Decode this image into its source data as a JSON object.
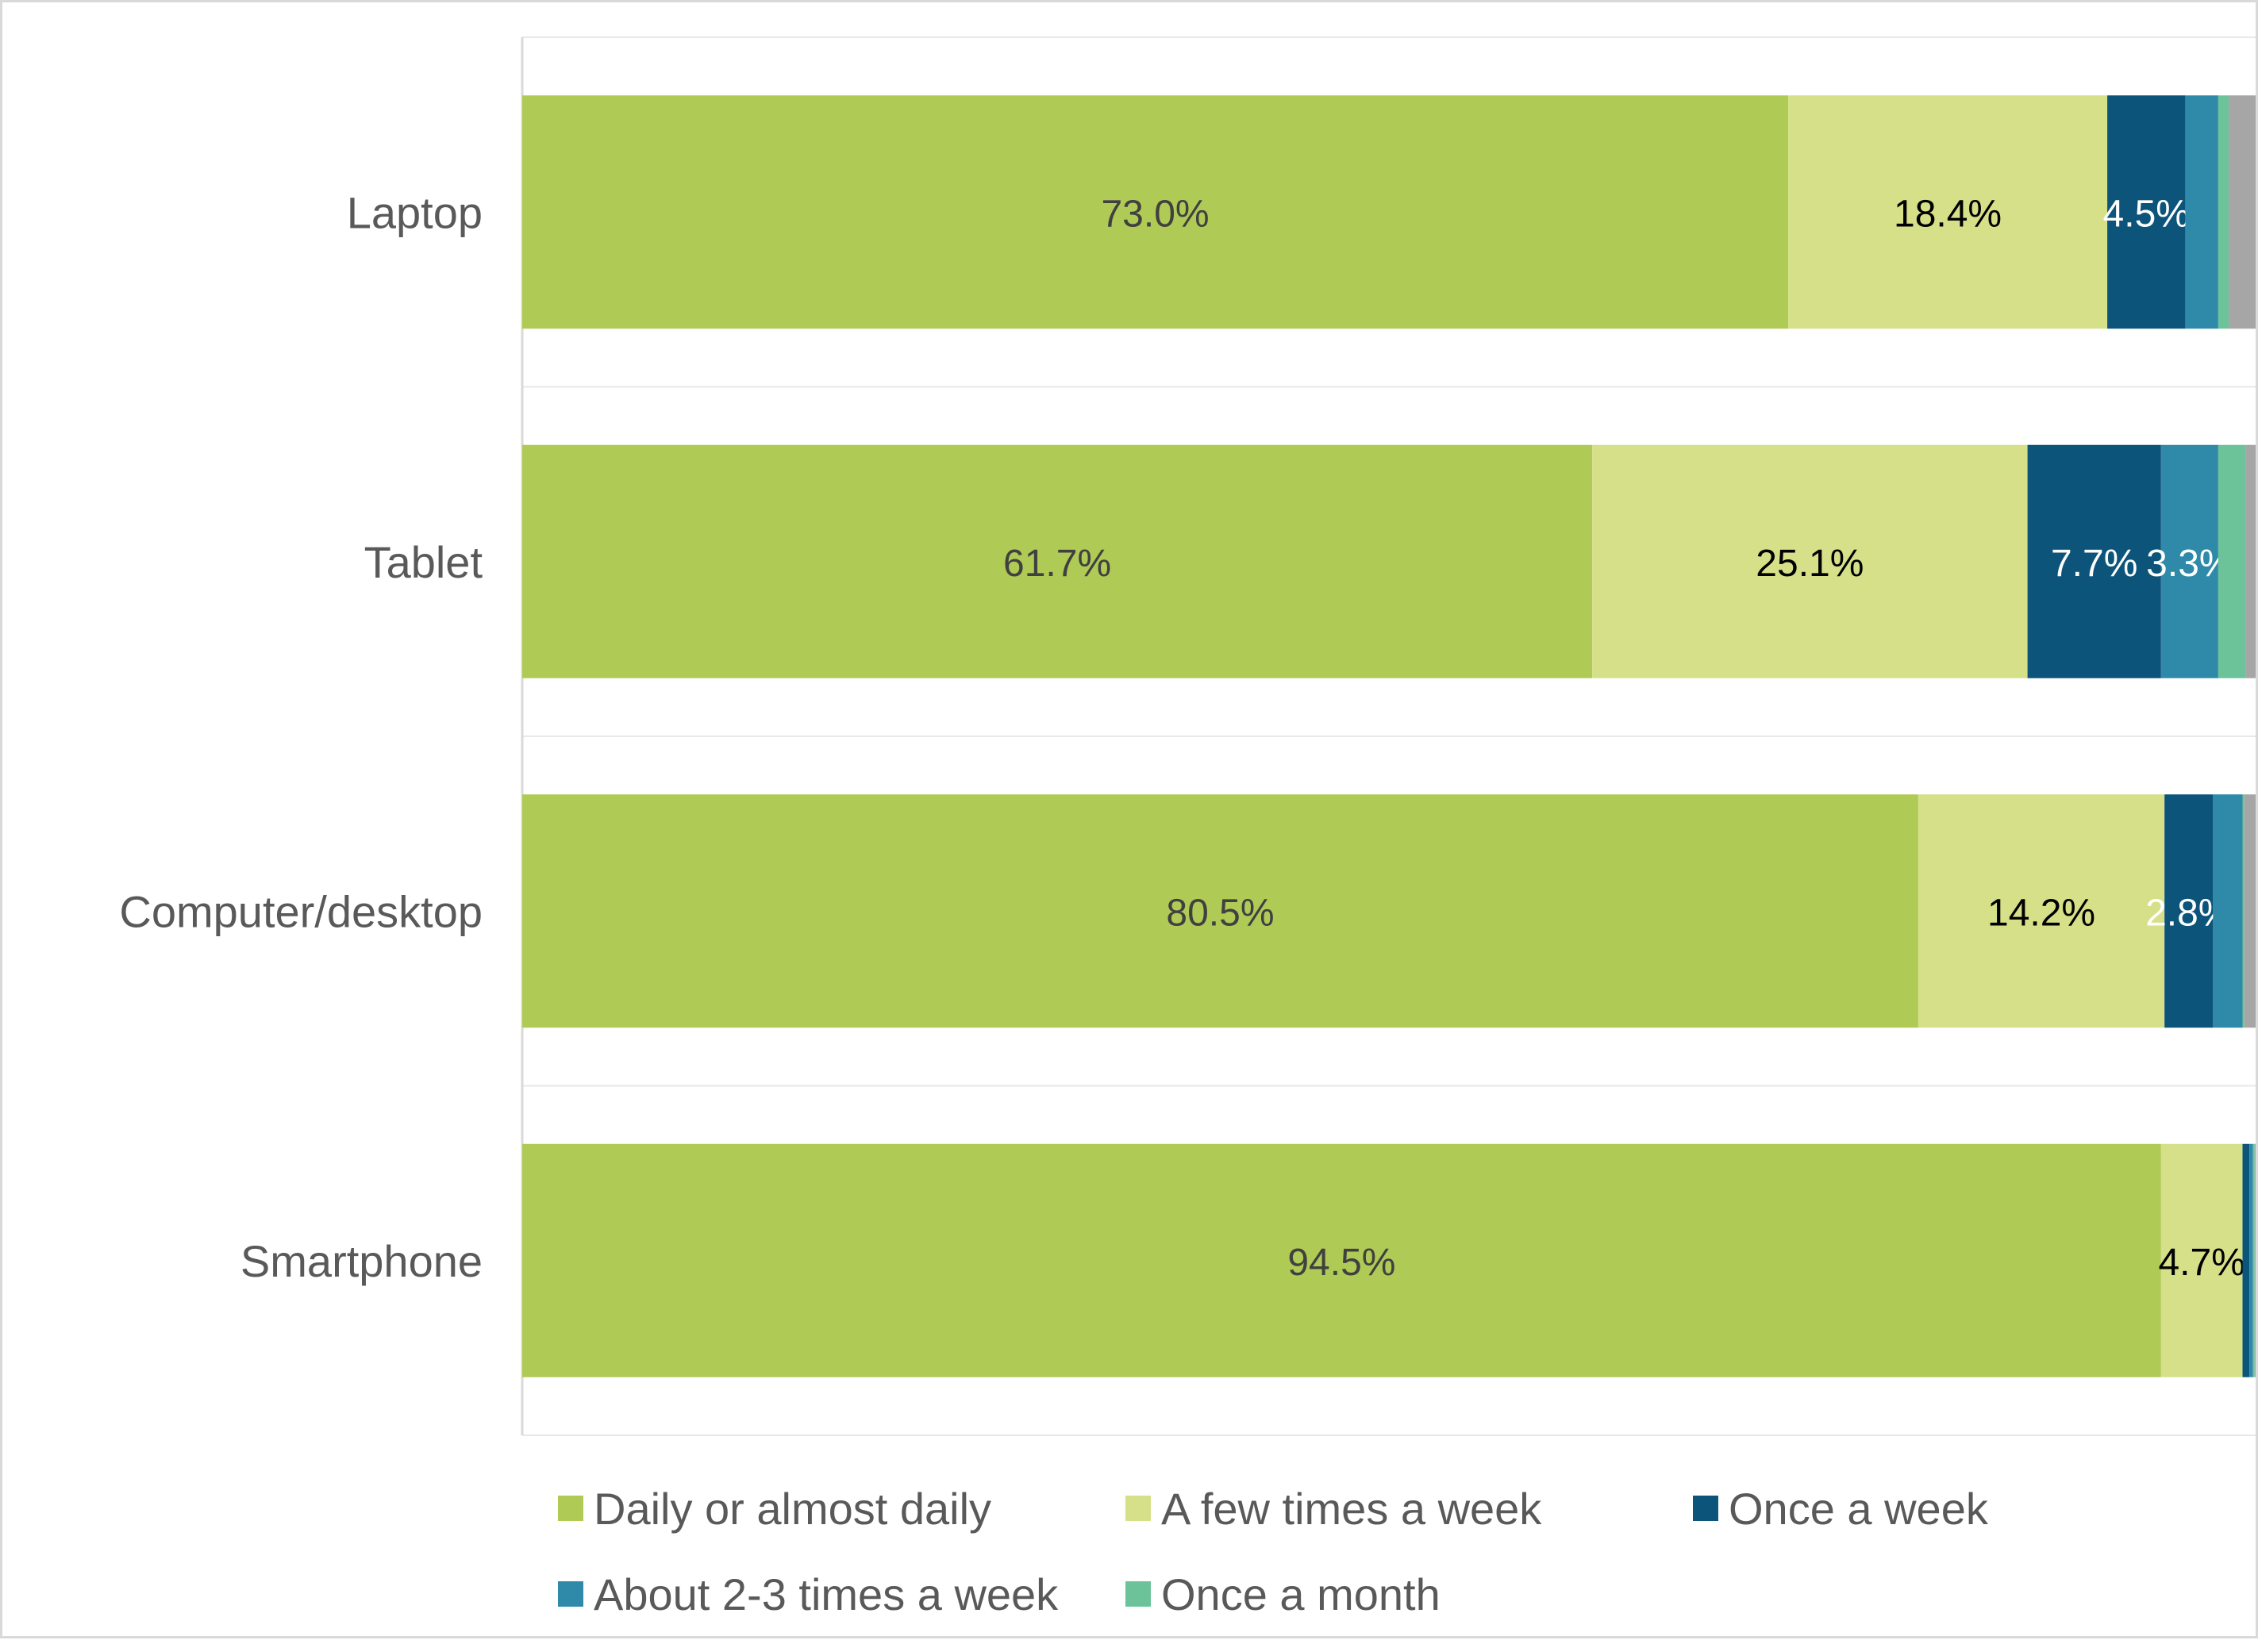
{
  "chart_data": {
    "type": "bar",
    "orientation": "horizontal",
    "stacked": true,
    "categories": [
      "Laptop",
      "Tablet",
      "Computer/desktop",
      "Smartphone"
    ],
    "xlim": [
      0,
      100
    ],
    "grid": true,
    "legend_position": "bottom",
    "series": [
      {
        "name": "Daily or almost daily",
        "color": "#b0ca56",
        "values": [
          73.0,
          61.7,
          80.5,
          94.5
        ],
        "labels": [
          "73.0%",
          "61.7%",
          "80.5%",
          "94.5%"
        ]
      },
      {
        "name": "A few times a week",
        "color": "#d5e088",
        "values": [
          18.4,
          25.1,
          14.2,
          4.7
        ],
        "labels": [
          "18.4%",
          "25.1%",
          "14.2%",
          "4.7%"
        ]
      },
      {
        "name": "Once a week",
        "color": "#0c5479",
        "values": [
          4.5,
          7.7,
          2.8,
          0.4
        ],
        "labels": [
          "4.5%",
          "7.7%",
          "2.8%",
          ""
        ]
      },
      {
        "name": "About 2-3 times a week",
        "color": "#2f8aa9",
        "values": [
          1.9,
          3.3,
          1.7,
          0.2
        ],
        "labels": [
          "",
          "3.3%",
          "",
          ""
        ]
      },
      {
        "name": "Once a month",
        "color": "#6cc39a",
        "values": [
          0.6,
          1.6,
          0.1,
          0.1
        ],
        "labels": [
          "",
          "",
          "",
          ""
        ]
      },
      {
        "name": "",
        "color": "#a6a6a6",
        "values": [
          1.6,
          0.6,
          0.7,
          0.1
        ],
        "labels": [
          "",
          "",
          "",
          ""
        ]
      }
    ]
  }
}
